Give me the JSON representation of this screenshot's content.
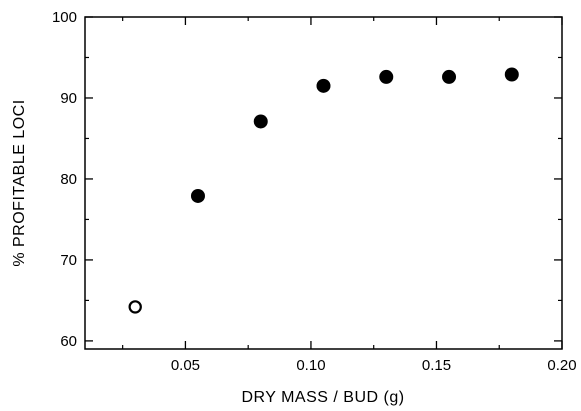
{
  "chart_data": {
    "type": "scatter",
    "xlabel": "DRY  MASS / BUD (g)",
    "ylabel": "% PROFITABLE LOCI",
    "xlim": [
      0.01,
      0.2
    ],
    "ylim": [
      59,
      100
    ],
    "xticks": [
      0.05,
      0.1,
      0.15,
      0.2
    ],
    "xtick_labels": [
      "0.05",
      "0.10",
      "0.15",
      "0.20"
    ],
    "yticks": [
      60,
      70,
      80,
      90,
      100
    ],
    "ytick_labels": [
      "60",
      "70",
      "80",
      "90",
      "100"
    ],
    "x_minor_ticks": [
      0.025,
      0.075,
      0.125,
      0.175
    ],
    "y_minor_ticks": [
      65,
      75,
      85,
      95
    ],
    "grid": false,
    "series": [
      {
        "marker": "open-circle",
        "points": [
          {
            "x": 0.03,
            "y": 64.2
          }
        ]
      },
      {
        "marker": "filled-circle",
        "points": [
          {
            "x": 0.055,
            "y": 77.9
          },
          {
            "x": 0.08,
            "y": 87.1
          },
          {
            "x": 0.105,
            "y": 91.5
          },
          {
            "x": 0.13,
            "y": 92.6
          },
          {
            "x": 0.155,
            "y": 92.6
          },
          {
            "x": 0.18,
            "y": 92.9
          }
        ]
      }
    ],
    "colors": {
      "ink": "#000000",
      "background": "#ffffff"
    }
  }
}
